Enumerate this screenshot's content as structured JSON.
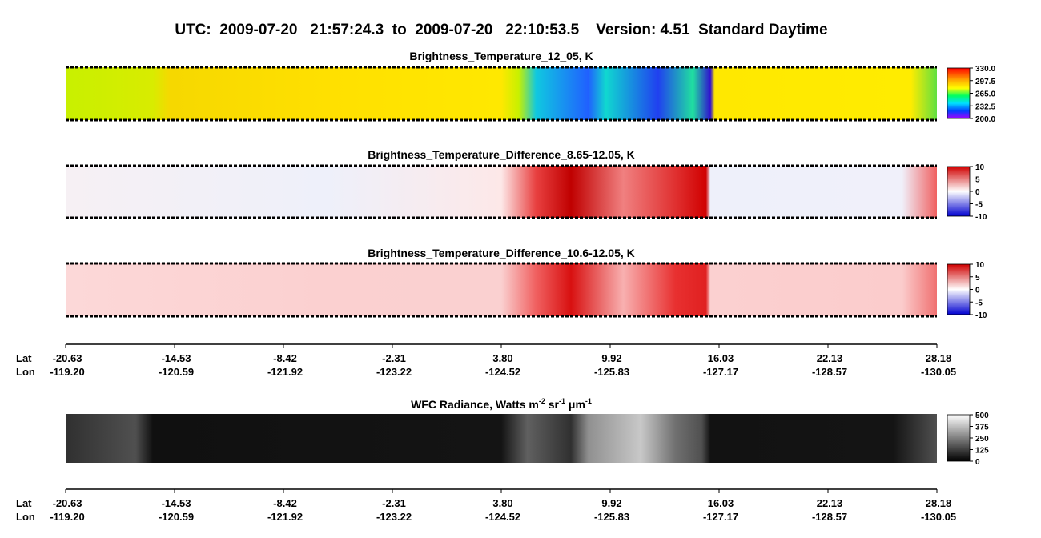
{
  "title": "UTC:  2009-07-20   21:57:24.3  to  2009-07-20   22:10:53.5    Version: 4.51  Standard Daytime",
  "panels": [
    {
      "title": "Brightness_Temperature_12_05, K",
      "colorbar": [
        "330.0",
        "297.5",
        "265.0",
        "232.5",
        "200.0"
      ]
    },
    {
      "title": "Brightness_Temperature_Difference_8.65-12.05, K",
      "colorbar": [
        "10",
        "5",
        "0",
        "-5",
        "-10"
      ]
    },
    {
      "title": "Brightness_Temperature_Difference_10.6-12.05, K",
      "colorbar": [
        "10",
        "5",
        "0",
        "-5",
        "-10"
      ]
    }
  ],
  "radiance_panel": {
    "title_parts": [
      "WFC Radiance, Watts m",
      "-2",
      " sr",
      "-1",
      " μm",
      "-1"
    ],
    "colorbar": [
      "500",
      "375",
      "250",
      "125",
      "0"
    ]
  },
  "axis": {
    "lat_label": "Lat",
    "lon_label": "Lon",
    "lat": [
      "-20.63",
      "-14.53",
      "-8.42",
      "-2.31",
      "3.80",
      "9.92",
      "16.03",
      "22.13",
      "28.18"
    ],
    "lon": [
      "-119.20",
      "-120.59",
      "-121.92",
      "-123.22",
      "-124.52",
      "-125.83",
      "-127.17",
      "-128.57",
      "-130.05"
    ]
  }
}
